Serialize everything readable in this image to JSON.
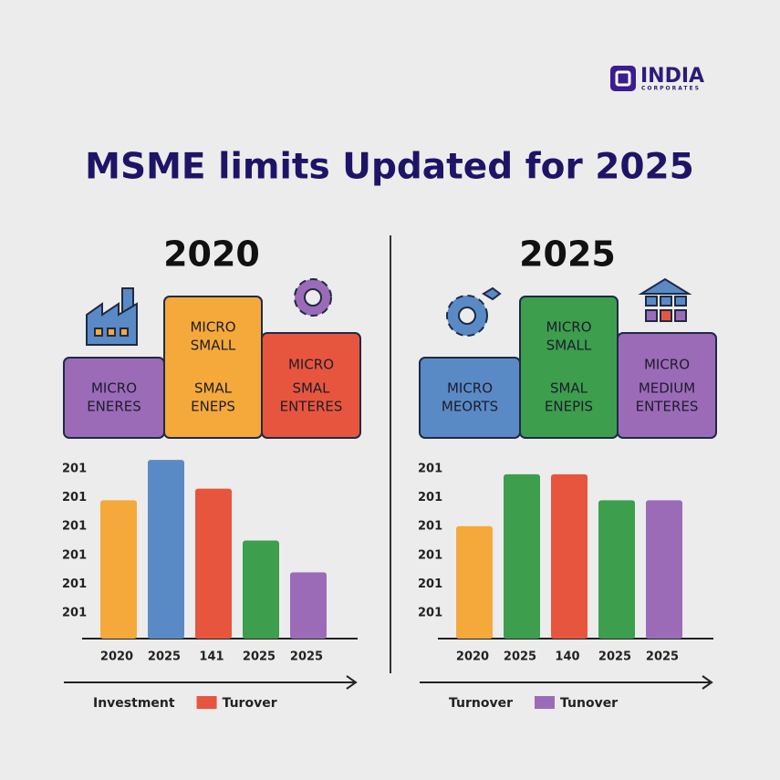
{
  "header": {
    "logo": "INDIA",
    "logo_sub": "CORPORATES",
    "title": "MSME limits Updated for 2025"
  },
  "panels": [
    {
      "year": "2020",
      "blocks": [
        {
          "lines": [
            "MICRO",
            "ENERES"
          ],
          "color": "#9b6bb8"
        },
        {
          "lines": [
            "MICRO",
            "SMALL",
            "SMAL",
            "ENEPS"
          ],
          "color": "#f5a93b"
        },
        {
          "lines": [
            "MICRO",
            "SMAL",
            "ENTERES"
          ],
          "color": "#e8553f"
        }
      ]
    },
    {
      "year": "2025",
      "blocks": [
        {
          "lines": [
            "MICRO",
            "MEORTS"
          ],
          "color": "#5a8ac6"
        },
        {
          "lines": [
            "MICRO",
            "SMALL",
            "SMAL",
            "ENEPIS"
          ],
          "color": "#3d9e4e"
        },
        {
          "lines": [
            "MICRO",
            "MEDIUM",
            "ENTERES"
          ],
          "color": "#9b6bb8"
        }
      ]
    }
  ],
  "chart_data": [
    {
      "type": "bar",
      "categories": [
        "2020",
        "2025",
        "141",
        "2025",
        "2025"
      ],
      "values": [
        4.8,
        6.2,
        5.2,
        3.4,
        2.3
      ],
      "colors": [
        "#f5a93b",
        "#5a8ac6",
        "#e8553f",
        "#3d9e4e",
        "#9b6bb8"
      ],
      "ylim": [
        0,
        6.5
      ],
      "yticks": [
        {
          "value": 6,
          "label": "201"
        },
        {
          "value": 5,
          "label": "201"
        },
        {
          "value": 4,
          "label": "201"
        },
        {
          "value": 3,
          "label": "201"
        },
        {
          "value": 2,
          "label": "201"
        },
        {
          "value": 1,
          "label": "201"
        }
      ],
      "legend": [
        {
          "label": "Investment"
        },
        {
          "label": "Turover",
          "color": "#e8553f"
        }
      ]
    },
    {
      "type": "bar",
      "categories": [
        "2020",
        "2025",
        "140",
        "2025",
        "2025"
      ],
      "values": [
        3.9,
        5.7,
        5.7,
        4.8,
        4.8
      ],
      "colors": [
        "#f5a93b",
        "#3d9e4e",
        "#e8553f",
        "#3d9e4e",
        "#9b6bb8"
      ],
      "ylim": [
        0,
        6.5
      ],
      "yticks": [
        {
          "value": 6,
          "label": "201"
        },
        {
          "value": 5,
          "label": "201"
        },
        {
          "value": 4,
          "label": "201"
        },
        {
          "value": 3,
          "label": "201"
        },
        {
          "value": 2,
          "label": "201"
        },
        {
          "value": 1,
          "label": "201"
        }
      ],
      "legend": [
        {
          "label": "Turnover"
        },
        {
          "label": "Tunover",
          "color": "#9b6bb8"
        }
      ]
    }
  ]
}
